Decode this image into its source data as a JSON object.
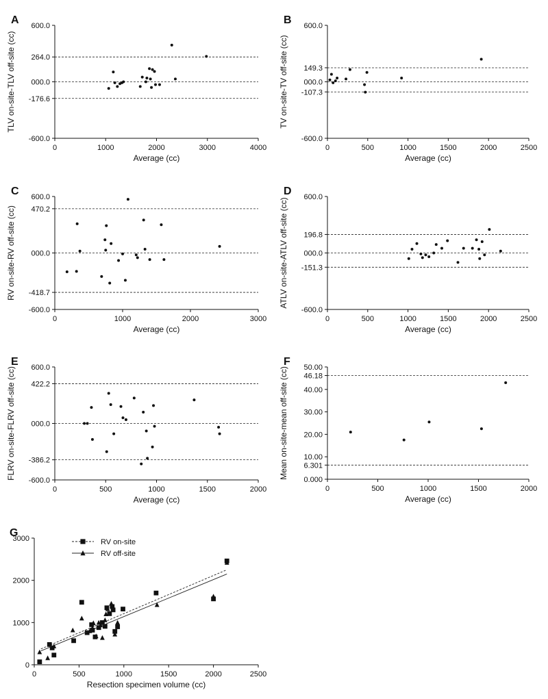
{
  "chart_data": [
    {
      "panel": "A",
      "type": "scatter",
      "xlabel": "Average (cc)",
      "ylabel": "TLV on-site-TLV off-site (cc)",
      "xlim": [
        0,
        4000
      ],
      "ylim": [
        -600,
        600
      ],
      "xticks": [
        "0",
        "1000",
        "2000",
        "3000",
        "4000"
      ],
      "yticks": [
        {
          "v": 600,
          "label": "600.0"
        },
        {
          "v": 264,
          "label": "264.0"
        },
        {
          "v": 0,
          "label": "000.0"
        },
        {
          "v": -176.6,
          "label": "-176.6"
        },
        {
          "v": -600,
          "label": "-600.0"
        }
      ],
      "hlines": [
        {
          "v": 264,
          "style": "dashed"
        },
        {
          "v": 0,
          "style": "dashed"
        },
        {
          "v": -176.6,
          "style": "dashed"
        }
      ],
      "points": [
        [
          1060,
          -70
        ],
        [
          1150,
          105
        ],
        [
          1180,
          -10
        ],
        [
          1230,
          -50
        ],
        [
          1280,
          -20
        ],
        [
          1320,
          -10
        ],
        [
          1350,
          0
        ],
        [
          1680,
          -50
        ],
        [
          1720,
          50
        ],
        [
          1790,
          0
        ],
        [
          1810,
          40
        ],
        [
          1860,
          140
        ],
        [
          1880,
          30
        ],
        [
          1900,
          -60
        ],
        [
          1920,
          130
        ],
        [
          1960,
          110
        ],
        [
          1980,
          -30
        ],
        [
          2060,
          -30
        ],
        [
          2300,
          390
        ],
        [
          2370,
          30
        ],
        [
          2980,
          270
        ]
      ]
    },
    {
      "panel": "B",
      "type": "scatter",
      "xlabel": "Average (cc)",
      "ylabel": "TV on-site-TV off-site (cc)",
      "xlim": [
        0,
        2500
      ],
      "ylim": [
        -600,
        600
      ],
      "xticks": [
        "0",
        "500",
        "1000",
        "1500",
        "2000",
        "2500"
      ],
      "yticks": [
        {
          "v": 600,
          "label": "600.0"
        },
        {
          "v": 149.3,
          "label": "149.3"
        },
        {
          "v": 0,
          "label": "000.0"
        },
        {
          "v": -107.3,
          "label": "-107.3"
        },
        {
          "v": -600,
          "label": "-600.0"
        }
      ],
      "hlines": [
        {
          "v": 149.3,
          "style": "dashed"
        },
        {
          "v": 0,
          "style": "dashed"
        },
        {
          "v": -107.3,
          "style": "dashed"
        }
      ],
      "points": [
        [
          30,
          20
        ],
        [
          50,
          80
        ],
        [
          70,
          -10
        ],
        [
          100,
          10
        ],
        [
          120,
          40
        ],
        [
          230,
          30
        ],
        [
          280,
          130
        ],
        [
          460,
          -30
        ],
        [
          470,
          -110
        ],
        [
          490,
          100
        ],
        [
          920,
          40
        ],
        [
          1910,
          240
        ]
      ]
    },
    {
      "panel": "C",
      "type": "scatter",
      "xlabel": "Average (cc)",
      "ylabel": "RV on-site-RV off-site (cc)",
      "xlim": [
        0,
        3000
      ],
      "ylim": [
        -600,
        600
      ],
      "xticks": [
        "0",
        "1000",
        "2000",
        "3000"
      ],
      "yticks": [
        {
          "v": 600,
          "label": "600.0"
        },
        {
          "v": 470.2,
          "label": "470.2"
        },
        {
          "v": 0,
          "label": "000.0"
        },
        {
          "v": -418.7,
          "label": "-418.7"
        },
        {
          "v": -600,
          "label": "-600.0"
        }
      ],
      "hlines": [
        {
          "v": 470.2,
          "style": "dashed"
        },
        {
          "v": 0,
          "style": "dashed"
        },
        {
          "v": -418.7,
          "style": "dashed"
        }
      ],
      "points": [
        [
          180,
          -200
        ],
        [
          320,
          -195
        ],
        [
          330,
          310
        ],
        [
          370,
          20
        ],
        [
          690,
          -250
        ],
        [
          740,
          140
        ],
        [
          750,
          30
        ],
        [
          760,
          290
        ],
        [
          810,
          -320
        ],
        [
          830,
          100
        ],
        [
          940,
          -80
        ],
        [
          1000,
          -10
        ],
        [
          1040,
          -290
        ],
        [
          1080,
          570
        ],
        [
          1200,
          -20
        ],
        [
          1220,
          -50
        ],
        [
          1310,
          350
        ],
        [
          1330,
          40
        ],
        [
          1400,
          -70
        ],
        [
          1570,
          300
        ],
        [
          1610,
          -70
        ],
        [
          2430,
          70
        ]
      ]
    },
    {
      "panel": "D",
      "type": "scatter",
      "xlabel": "Average (cc)",
      "ylabel": "ATLV on-site-ATLV off-site (cc)",
      "xlim": [
        0,
        2500
      ],
      "ylim": [
        -600,
        600
      ],
      "xticks": [
        "0",
        "500",
        "1000",
        "1500",
        "2000",
        "2500"
      ],
      "yticks": [
        {
          "v": 600,
          "label": "600.0"
        },
        {
          "v": 196.8,
          "label": "196.8"
        },
        {
          "v": 0,
          "label": "000.0"
        },
        {
          "v": -151.3,
          "label": "-151.3"
        },
        {
          "v": -600,
          "label": "-600.0"
        }
      ],
      "hlines": [
        {
          "v": 196.8,
          "style": "dashed"
        },
        {
          "v": 0,
          "style": "dashed"
        },
        {
          "v": -151.3,
          "style": "dashed"
        }
      ],
      "points": [
        [
          1010,
          -60
        ],
        [
          1050,
          40
        ],
        [
          1110,
          100
        ],
        [
          1160,
          -10
        ],
        [
          1180,
          -50
        ],
        [
          1220,
          -20
        ],
        [
          1260,
          -40
        ],
        [
          1320,
          0
        ],
        [
          1350,
          90
        ],
        [
          1420,
          50
        ],
        [
          1490,
          130
        ],
        [
          1620,
          -100
        ],
        [
          1690,
          50
        ],
        [
          1800,
          50
        ],
        [
          1850,
          140
        ],
        [
          1880,
          40
        ],
        [
          1890,
          -60
        ],
        [
          1920,
          120
        ],
        [
          1950,
          -20
        ],
        [
          2010,
          250
        ],
        [
          2150,
          20
        ]
      ]
    },
    {
      "panel": "E",
      "type": "scatter",
      "xlabel": "Average (cc)",
      "ylabel": "FLRV on-site-FLRV off-site (cc)",
      "xlim": [
        0,
        2000
      ],
      "ylim": [
        -600,
        600
      ],
      "xticks": [
        "0",
        "500",
        "1000",
        "1500",
        "2000"
      ],
      "yticks": [
        {
          "v": 600,
          "label": "600.0"
        },
        {
          "v": 422.2,
          "label": "422.2"
        },
        {
          "v": 0,
          "label": "000.0"
        },
        {
          "v": -386.2,
          "label": "-386.2"
        },
        {
          "v": -600,
          "label": "-600.0"
        }
      ],
      "hlines": [
        {
          "v": 422.2,
          "style": "dashed"
        },
        {
          "v": 0,
          "style": "dashed"
        },
        {
          "v": -386.2,
          "style": "dashed"
        }
      ],
      "points": [
        [
          290,
          0
        ],
        [
          320,
          0
        ],
        [
          360,
          170
        ],
        [
          370,
          -170
        ],
        [
          510,
          -300
        ],
        [
          530,
          320
        ],
        [
          550,
          200
        ],
        [
          580,
          -110
        ],
        [
          650,
          180
        ],
        [
          670,
          60
        ],
        [
          700,
          40
        ],
        [
          780,
          270
        ],
        [
          850,
          -430
        ],
        [
          870,
          120
        ],
        [
          900,
          -80
        ],
        [
          910,
          -370
        ],
        [
          960,
          -250
        ],
        [
          970,
          190
        ],
        [
          980,
          -30
        ],
        [
          1370,
          250
        ],
        [
          1610,
          -40
        ],
        [
          1620,
          -110
        ]
      ]
    },
    {
      "panel": "F",
      "type": "scatter",
      "xlabel": "Average (cc)",
      "ylabel": "Mean on-site-mean off-site (cc)",
      "xlim": [
        0,
        2000
      ],
      "ylim": [
        0,
        50
      ],
      "xticks": [
        "0",
        "500",
        "1000",
        "1500",
        "2000"
      ],
      "yticks": [
        {
          "v": 50,
          "label": "50.00"
        },
        {
          "v": 46.18,
          "label": "46.18"
        },
        {
          "v": 40,
          "label": "40.00"
        },
        {
          "v": 30,
          "label": "30.00"
        },
        {
          "v": 20,
          "label": "20.00"
        },
        {
          "v": 10,
          "label": "10.00"
        },
        {
          "v": 6.301,
          "label": "6.301"
        },
        {
          "v": 0,
          "label": "0.000"
        }
      ],
      "hlines": [
        {
          "v": 46.18,
          "style": "dashed"
        },
        {
          "v": 6.301,
          "style": "dashed"
        }
      ],
      "points": [
        [
          230,
          21
        ],
        [
          760,
          17.5
        ],
        [
          1010,
          25.5
        ],
        [
          1530,
          22.5
        ],
        [
          1770,
          43
        ]
      ]
    },
    {
      "panel": "G",
      "type": "scatter",
      "xlabel": "Resection specimen volume (cc)",
      "ylabel": "",
      "xlim": [
        0,
        2500
      ],
      "ylim": [
        0,
        3000
      ],
      "xticks": [
        "0",
        "500",
        "1000",
        "1500",
        "2000",
        "2500"
      ],
      "yticks": [
        {
          "v": 3000,
          "label": "3000"
        },
        {
          "v": 2000,
          "label": "2000"
        },
        {
          "v": 1000,
          "label": "1000"
        },
        {
          "v": 0,
          "label": "0"
        }
      ],
      "legend_position": "top-left",
      "series": [
        {
          "name": "RV on-site",
          "marker": "square",
          "line": "dashed",
          "fit": [
            [
              75,
              375
            ],
            [
              2150,
              2250
            ]
          ],
          "points": [
            [
              60,
              70
            ],
            [
              170,
              480
            ],
            [
              200,
              400
            ],
            [
              220,
              230
            ],
            [
              440,
              570
            ],
            [
              530,
              1480
            ],
            [
              590,
              760
            ],
            [
              640,
              950
            ],
            [
              650,
              820
            ],
            [
              680,
              660
            ],
            [
              720,
              880
            ],
            [
              760,
              1000
            ],
            [
              790,
              910
            ],
            [
              810,
              1350
            ],
            [
              840,
              1210
            ],
            [
              870,
              1380
            ],
            [
              880,
              1300
            ],
            [
              900,
              790
            ],
            [
              930,
              900
            ],
            [
              990,
              1320
            ],
            [
              1360,
              1700
            ],
            [
              2000,
              1560
            ],
            [
              2150,
              2460
            ]
          ]
        },
        {
          "name": "RV off-site",
          "marker": "triangle",
          "line": "solid",
          "fit": [
            [
              75,
              330
            ],
            [
              2150,
              2150
            ]
          ],
          "points": [
            [
              60,
              300
            ],
            [
              150,
              160
            ],
            [
              220,
              440
            ],
            [
              430,
              820
            ],
            [
              530,
              1100
            ],
            [
              620,
              800
            ],
            [
              650,
              870
            ],
            [
              660,
              990
            ],
            [
              690,
              680
            ],
            [
              720,
              1000
            ],
            [
              740,
              940
            ],
            [
              760,
              640
            ],
            [
              790,
              1060
            ],
            [
              800,
              1200
            ],
            [
              820,
              1320
            ],
            [
              860,
              1450
            ],
            [
              900,
              720
            ],
            [
              930,
              1000
            ],
            [
              1370,
              1420
            ],
            [
              2000,
              1620
            ],
            [
              2150,
              2420
            ]
          ]
        }
      ]
    }
  ]
}
